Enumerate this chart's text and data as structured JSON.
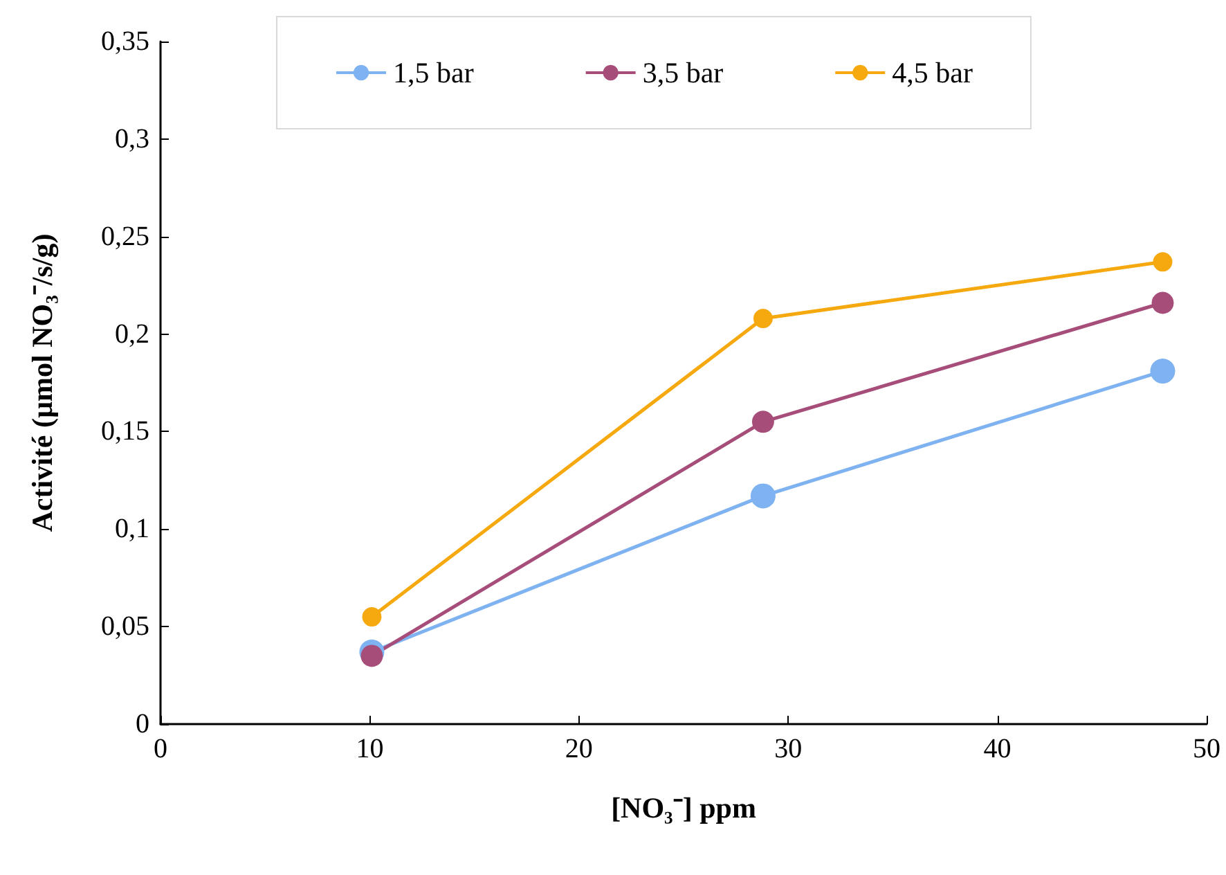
{
  "chart_data": {
    "type": "line",
    "xlabel": "[NO₃⁻] ppm",
    "ylabel": "Activité (µmol NO₃⁻/s/g)",
    "x": [
      10.1,
      28.8,
      47.9
    ],
    "series": [
      {
        "name": "1,5 bar",
        "color": "#7eb2f0",
        "values": [
          0.037,
          0.117,
          0.181
        ]
      },
      {
        "name": "3,5 bar",
        "color": "#a64d79",
        "values": [
          0.035,
          0.155,
          0.216
        ]
      },
      {
        "name": "4,5 bar",
        "color": "#f5a90f",
        "values": [
          0.055,
          0.208,
          0.237
        ]
      }
    ],
    "xlim": [
      0,
      50
    ],
    "xticks": [
      0,
      10,
      20,
      30,
      40,
      50
    ],
    "ylim": [
      0,
      0.35
    ],
    "yticks": [
      {
        "value": 0,
        "label": "0"
      },
      {
        "value": 0.05,
        "label": "0,05"
      },
      {
        "value": 0.1,
        "label": "0,1"
      },
      {
        "value": 0.15,
        "label": "0,15"
      },
      {
        "value": 0.2,
        "label": "0,2"
      },
      {
        "value": 0.25,
        "label": "0,25"
      },
      {
        "value": 0.3,
        "label": "0,3"
      },
      {
        "value": 0.35,
        "label": "0,35"
      }
    ],
    "grid": false,
    "legend": "top",
    "marker": "circle",
    "line_style": "solid"
  }
}
